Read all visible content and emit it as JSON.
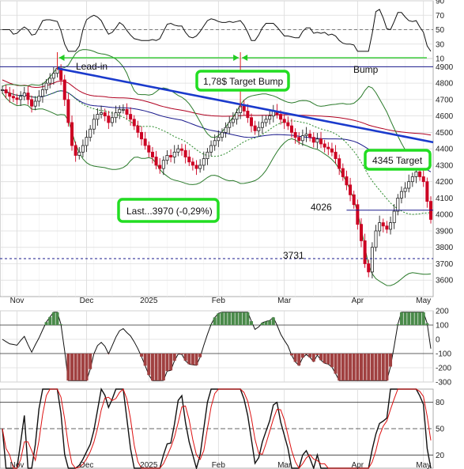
{
  "chart_data": {
    "type": "line",
    "price": {
      "ylim": [
        3500,
        4950
      ],
      "y_ticks": [
        3600,
        3700,
        3800,
        3900,
        4000,
        4100,
        4200,
        4300,
        4400,
        4500,
        4600,
        4700,
        4800,
        4900
      ],
      "x_labels": [
        "Nov",
        "Dec",
        "2025",
        "Feb",
        "Mar",
        "Apr",
        "May"
      ],
      "close": [
        4760,
        4740,
        4720,
        4710,
        4700,
        4720,
        4740,
        4700,
        4660,
        4690,
        4720,
        4760,
        4800,
        4830,
        4860,
        4890,
        4820,
        4700,
        4560,
        4420,
        4360,
        4380,
        4420,
        4470,
        4520,
        4580,
        4610,
        4620,
        4600,
        4560,
        4590,
        4620,
        4640,
        4640,
        4610,
        4580,
        4540,
        4500,
        4460,
        4420,
        4380,
        4350,
        4300,
        4280,
        4330,
        4360,
        4350,
        4380,
        4400,
        4390,
        4350,
        4320,
        4300,
        4280,
        4300,
        4340,
        4380,
        4420,
        4450,
        4470,
        4500,
        4530,
        4560,
        4580,
        4620,
        4660,
        4630,
        4590,
        4540,
        4510,
        4530,
        4560,
        4580,
        4600,
        4630,
        4610,
        4580,
        4560,
        4540,
        4500,
        4470,
        4450,
        4480,
        4490,
        4470,
        4440,
        4460,
        4430,
        4410,
        4400,
        4380,
        4340,
        4280,
        4230,
        4180,
        4120,
        4060,
        3940,
        3840,
        3700,
        3650,
        3800,
        3900,
        3950,
        3930,
        3910,
        3950,
        4020,
        4100,
        4140,
        4160,
        4200,
        4230,
        4260,
        4230,
        4200,
        4080,
        3970
      ],
      "lines": {
        "resistance": [
          4890,
          4440
        ],
        "level_4900": 4900,
        "level_4026": 4026,
        "level_3731": 3731
      },
      "labels": {
        "lead_in": "Lead-in",
        "bump": "Bump",
        "target_bump": "1,78$ Target Bump",
        "target": "4345 Target",
        "last": "Last...3970 (-0,29%)",
        "l4026": "4026",
        "l3731": "3731"
      }
    },
    "rsi_panel": {
      "ylim": [
        10,
        90
      ],
      "y_ticks": [
        10,
        30,
        50,
        70,
        90
      ]
    },
    "cci_panel": {
      "ylim": [
        -300,
        200
      ],
      "y_ticks": [
        200,
        100,
        0,
        -100,
        -200,
        -300
      ]
    },
    "stoch_panel": {
      "ylim": [
        5,
        95
      ],
      "y_ticks": [
        80,
        50,
        20
      ]
    }
  }
}
